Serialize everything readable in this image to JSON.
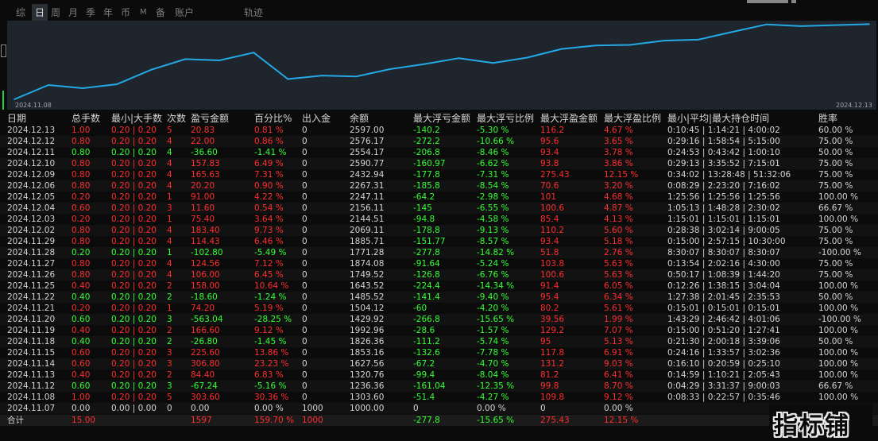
{
  "tabs": [
    {
      "label": "综",
      "selected": false
    },
    {
      "label": "日",
      "selected": true
    },
    {
      "label": "周",
      "selected": false
    },
    {
      "label": "月",
      "selected": false
    },
    {
      "label": "季",
      "selected": false
    },
    {
      "label": "年",
      "selected": false
    },
    {
      "label": "币",
      "selected": false
    },
    {
      "label": "M",
      "selected": false
    },
    {
      "label": "备",
      "selected": false
    },
    {
      "label": "账户",
      "selected": false
    },
    {
      "label": "轨迹",
      "selected": false
    }
  ],
  "chart_data": {
    "type": "line",
    "x_start_label": "2024.11.08",
    "x_end_label": "2024.12.13",
    "line_color": "#23a9e6",
    "x": [
      "2024.11.07",
      "2024.11.08",
      "2024.11.12",
      "2024.11.13",
      "2024.11.14",
      "2024.11.15",
      "2024.11.18",
      "2024.11.19",
      "2024.11.20",
      "2024.11.21",
      "2024.11.22",
      "2024.11.25",
      "2024.11.26",
      "2024.11.27",
      "2024.11.28",
      "2024.11.29",
      "2024.12.02",
      "2024.12.03",
      "2024.12.04",
      "2024.12.05",
      "2024.12.06",
      "2024.12.09",
      "2024.12.10",
      "2024.12.11",
      "2024.12.12",
      "2024.12.13"
    ],
    "values": [
      1000.0,
      1303.6,
      1236.36,
      1320.76,
      1627.56,
      1853.16,
      1826.36,
      1992.96,
      1429.92,
      1504.12,
      1485.52,
      1643.52,
      1749.52,
      1874.08,
      1771.28,
      1885.71,
      2069.11,
      2144.51,
      2156.11,
      2247.11,
      2267.31,
      2432.94,
      2590.77,
      2554.17,
      2576.17,
      2597.0
    ],
    "ylim": [
      1000,
      2620
    ]
  },
  "table": {
    "headers": [
      "日期",
      "总手数",
      "最小|大手数",
      "次数",
      "盈亏金额",
      "百分比%",
      "出入金",
      "余额",
      "最大浮亏金额",
      "最大浮亏比例",
      "最大浮盈金额",
      "最大浮盈比例",
      "最小|平均|最大持仓时间",
      "胜率"
    ],
    "rows": [
      [
        "2024.12.13",
        "1.00",
        "0.20 | 0.20",
        "5",
        "20.83",
        "0.81 %",
        "0",
        "2597.00",
        "-140.2",
        "-5.30 %",
        "116.2",
        "4.67 %",
        "0:10:45 | 1:14:21 | 4:00:02",
        "60.00 %"
      ],
      [
        "2024.12.12",
        "0.80",
        "0.20 | 0.20",
        "4",
        "22.00",
        "0.86 %",
        "0",
        "2576.17",
        "-272.2",
        "-10.66 %",
        "95.6",
        "3.65 %",
        "0:29:16 | 1:58:54 | 5:15:00",
        "75.00 %"
      ],
      [
        "2024.12.11",
        "0.80",
        "0.20 | 0.20",
        "4",
        "-36.60",
        "-1.41 %",
        "0",
        "2554.17",
        "-206.8",
        "-8.46 %",
        "93.4",
        "3.78 %",
        "0:24:53 | 0:43:42 | 1:00:10",
        "50.00 %"
      ],
      [
        "2024.12.10",
        "0.80",
        "0.20 | 0.20",
        "4",
        "157.83",
        "6.49 %",
        "0",
        "2590.77",
        "-160.97",
        "-6.62 %",
        "93.8",
        "3.86 %",
        "0:29:13 | 3:35:52 | 7:15:01",
        "75.00 %"
      ],
      [
        "2024.12.09",
        "0.80",
        "0.20 | 0.20",
        "4",
        "165.63",
        "7.31 %",
        "0",
        "2432.94",
        "-177.8",
        "-7.31 %",
        "275.43",
        "12.15 %",
        "0:34:02 | 13:28:48 | 51:32:06",
        "75.00 %"
      ],
      [
        "2024.12.06",
        "0.80",
        "0.20 | 0.20",
        "4",
        "20.20",
        "0.90 %",
        "0",
        "2267.31",
        "-185.8",
        "-8.54 %",
        "70.6",
        "3.20 %",
        "0:08:29 | 2:23:20 | 7:16:02",
        "75.00 %"
      ],
      [
        "2024.12.05",
        "0.20",
        "0.20 | 0.20",
        "1",
        "91.00",
        "4.22 %",
        "0",
        "2247.11",
        "-64.2",
        "-2.98 %",
        "101",
        "4.68 %",
        "1:25:56 | 1:25:56 | 1:25:56",
        "100.00 %"
      ],
      [
        "2024.12.04",
        "0.60",
        "0.20 | 0.20",
        "3",
        "11.60",
        "0.54 %",
        "0",
        "2156.11",
        "-145",
        "-6.55 %",
        "100.6",
        "4.87 %",
        "1:05:13 | 1:48:28 | 2:30:02",
        "66.67 %"
      ],
      [
        "2024.12.03",
        "0.20",
        "0.20 | 0.20",
        "1",
        "75.40",
        "3.64 %",
        "0",
        "2144.51",
        "-94.8",
        "-4.58 %",
        "85.4",
        "4.13 %",
        "1:15:01 | 1:15:01 | 1:15:01",
        "100.00 %"
      ],
      [
        "2024.12.02",
        "0.80",
        "0.20 | 0.20",
        "4",
        "183.40",
        "9.73 %",
        "0",
        "2069.11",
        "-178.8",
        "-9.13 %",
        "110.2",
        "5.60 %",
        "0:28:38 | 3:02:14 | 9:00:05",
        "75.00 %"
      ],
      [
        "2024.11.29",
        "0.80",
        "0.20 | 0.20",
        "4",
        "114.43",
        "6.46 %",
        "0",
        "1885.71",
        "-151.77",
        "-8.57 %",
        "93.4",
        "5.18 %",
        "0:15:00 | 2:57:15 | 10:30:00",
        "75.00 %"
      ],
      [
        "2024.11.28",
        "0.20",
        "0.20 | 0.20",
        "1",
        "-102.80",
        "-5.49 %",
        "0",
        "1771.28",
        "-277.8",
        "-14.82 %",
        "51.8",
        "2.76 %",
        "8:30:07 | 8:30:07 | 8:30:07",
        "-100.00 %"
      ],
      [
        "2024.11.27",
        "0.80",
        "0.20 | 0.20",
        "4",
        "124.56",
        "7.12 %",
        "0",
        "1874.08",
        "-91.64",
        "-5.24 %",
        "103.8",
        "5.63 %",
        "0:13:54 | 2:02:16 | 4:30:00",
        "75.00 %"
      ],
      [
        "2024.11.26",
        "0.80",
        "0.20 | 0.20",
        "4",
        "106.00",
        "6.45 %",
        "0",
        "1749.52",
        "-126.8",
        "-6.76 %",
        "100.6",
        "5.63 %",
        "0:50:17 | 1:08:39 | 1:44:20",
        "75.00 %"
      ],
      [
        "2024.11.25",
        "0.40",
        "0.20 | 0.20",
        "2",
        "158.00",
        "10.64 %",
        "0",
        "1643.52",
        "-224.4",
        "-14.34 %",
        "91.4",
        "6.05 %",
        "0:12:26 | 1:38:15 | 3:04:04",
        "100.00 %"
      ],
      [
        "2024.11.22",
        "0.40",
        "0.20 | 0.20",
        "2",
        "-18.60",
        "-1.24 %",
        "0",
        "1485.52",
        "-141.4",
        "-9.40 %",
        "95.4",
        "6.34 %",
        "1:27:38 | 2:01:45 | 2:35:53",
        "50.00 %"
      ],
      [
        "2024.11.21",
        "0.20",
        "0.20 | 0.20",
        "1",
        "74.20",
        "5.19 %",
        "0",
        "1504.12",
        "-60",
        "-4.20 %",
        "80.2",
        "5.61 %",
        "0:15:01 | 0:15:01 | 0:15:01",
        "100.00 %"
      ],
      [
        "2024.11.20",
        "0.60",
        "0.20 | 0.20",
        "3",
        "-563.04",
        "-28.25 %",
        "0",
        "1429.92",
        "-266.8",
        "-15.65 %",
        "39.56",
        "1.99 %",
        "1:43:29 | 2:46:42 | 4:01:06",
        "-100.00 %"
      ],
      [
        "2024.11.19",
        "0.40",
        "0.20 | 0.20",
        "2",
        "166.60",
        "9.12 %",
        "0",
        "1992.96",
        "-28.6",
        "-1.57 %",
        "129.2",
        "7.07 %",
        "0:15:00 | 0:51:20 | 1:27:41",
        "100.00 %"
      ],
      [
        "2024.11.18",
        "0.40",
        "0.20 | 0.20",
        "2",
        "-26.80",
        "-1.45 %",
        "0",
        "1826.36",
        "-111.2",
        "-5.74 %",
        "95",
        "5.13 %",
        "0:21:30 | 2:00:18 | 3:39:06",
        "50.00 %"
      ],
      [
        "2024.11.15",
        "0.60",
        "0.20 | 0.20",
        "3",
        "225.60",
        "13.86 %",
        "0",
        "1853.16",
        "-132.6",
        "-7.78 %",
        "117.8",
        "6.91 %",
        "0:24:16 | 1:33:57 | 3:02:36",
        "100.00 %"
      ],
      [
        "2024.11.14",
        "0.60",
        "0.20 | 0.20",
        "3",
        "306.80",
        "23.23 %",
        "0",
        "1627.56",
        "-67.2",
        "-4.70 %",
        "131.2",
        "9.03 %",
        "0:16:10 | 0:20:59 | 0:25:10",
        "100.00 %"
      ],
      [
        "2024.11.13",
        "0.40",
        "0.20 | 0.20",
        "2",
        "84.40",
        "6.83 %",
        "0",
        "1320.76",
        "-99.4",
        "-8.04 %",
        "81.2",
        "6.41 %",
        "0:14:59 | 1:10:21 | 2:05:43",
        "100.00 %"
      ],
      [
        "2024.11.12",
        "0.60",
        "0.20 | 0.20",
        "3",
        "-67.24",
        "-5.16 %",
        "0",
        "1236.36",
        "-161.04",
        "-12.35 %",
        "99.8",
        "8.70 %",
        "0:04:29 | 3:31:37 | 9:00:03",
        "66.67 %"
      ],
      [
        "2024.11.08",
        "1.00",
        "0.20 | 0.20",
        "5",
        "303.60",
        "30.36 %",
        "0",
        "1303.60",
        "-51.4",
        "-4.27 %",
        "109.8",
        "9.12 %",
        "0:08:33 | 0:22:57 | 0:35:46",
        "100.00 %"
      ],
      [
        "2024.11.07",
        "0.00",
        "0.00 | 0.00",
        "0",
        "0.00",
        "0.00 %",
        "1000",
        "1000.00",
        "0",
        "0.00 %",
        "0",
        "0.00 %",
        "",
        ""
      ]
    ],
    "total": [
      "合计",
      "15.00",
      "",
      "",
      "1597",
      "159.70 %",
      "1000",
      "",
      "-277.8",
      "-15.65 %",
      "275.43",
      "12.15 %",
      "",
      ""
    ]
  },
  "watermark_text": "指标铺",
  "colors": {
    "positive": "#ff2d2d",
    "negative": "#33ff33",
    "neutral": "#d4d4d4",
    "chart_bg": "#1f252c"
  }
}
